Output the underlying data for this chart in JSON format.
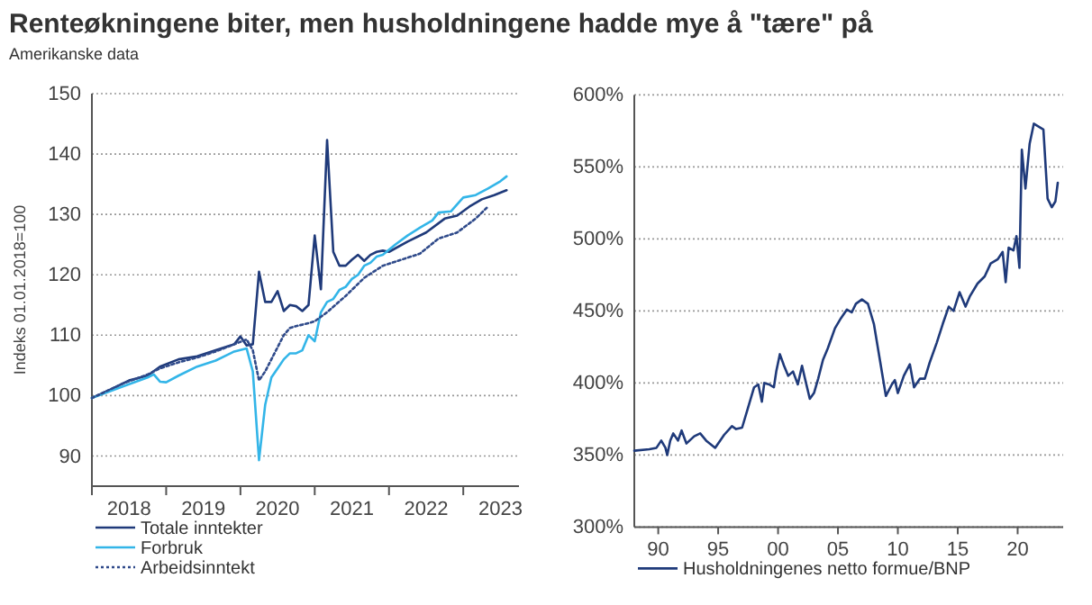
{
  "chart_data": [
    {
      "type": "line",
      "title": "Renteøkningene biter, men husholdningene hadde mye å \"tære\" på",
      "subtitle": "Amerikanske data",
      "ylabel": "Indeks 01.01.2018=100",
      "xlim": [
        "2018-01",
        "2023-10"
      ],
      "xticks": [
        {
          "value": "2018-01",
          "label": null
        },
        {
          "value": "2018-07",
          "label": "2018"
        },
        {
          "value": "2019-01",
          "label": null
        },
        {
          "value": "2019-07",
          "label": "2019"
        },
        {
          "value": "2020-01",
          "label": null
        },
        {
          "value": "2020-07",
          "label": "2020"
        },
        {
          "value": "2021-01",
          "label": null
        },
        {
          "value": "2021-07",
          "label": "2021"
        },
        {
          "value": "2022-01",
          "label": null
        },
        {
          "value": "2022-07",
          "label": "2022"
        },
        {
          "value": "2023-01",
          "label": null
        },
        {
          "value": "2023-07",
          "label": "2023"
        }
      ],
      "ylim": [
        85,
        150
      ],
      "yticks": [
        90,
        100,
        110,
        120,
        130,
        140,
        150
      ],
      "grid": "y",
      "legend": "bottom",
      "series": [
        {
          "name": "Totale inntekter",
          "color": "#1f3a7a",
          "line_style": "solid",
          "x": [
            "2018-01",
            "2018-04",
            "2018-07",
            "2018-10",
            "2018-12",
            "2019-03",
            "2019-06",
            "2019-09",
            "2019-12",
            "2020-01",
            "2020-02",
            "2020-03",
            "2020-04",
            "2020-05",
            "2020-06",
            "2020-07",
            "2020-08",
            "2020-09",
            "2020-10",
            "2020-11",
            "2020-12",
            "2021-01",
            "2021-02",
            "2021-03",
            "2021-04",
            "2021-05",
            "2021-06",
            "2021-07",
            "2021-08",
            "2021-09",
            "2021-10",
            "2021-11",
            "2021-12",
            "2022-01",
            "2022-04",
            "2022-07",
            "2022-10",
            "2022-12",
            "2023-02",
            "2023-04",
            "2023-06",
            "2023-08"
          ],
          "values": [
            99.6,
            101,
            102.5,
            103.3,
            104.8,
            106,
            106.5,
            107.5,
            108.5,
            109.8,
            108.3,
            108.5,
            120.5,
            115.5,
            115.5,
            117.3,
            114,
            115,
            114.8,
            114,
            115,
            126.5,
            117.6,
            142.3,
            123.8,
            121.5,
            121.5,
            122.5,
            123.3,
            122.3,
            123.3,
            123.8,
            124,
            123.8,
            125.5,
            127,
            129.3,
            129.8,
            131.3,
            132.5,
            133.2,
            134
          ]
        },
        {
          "name": "Forbruk",
          "color": "#33b5e8",
          "line_style": "solid",
          "x": [
            "2018-01",
            "2018-06",
            "2018-10",
            "2018-11",
            "2018-12",
            "2019-01",
            "2019-03",
            "2019-06",
            "2019-09",
            "2019-12",
            "2020-02",
            "2020-03",
            "2020-04",
            "2020-05",
            "2020-06",
            "2020-07",
            "2020-08",
            "2020-09",
            "2020-10",
            "2020-11",
            "2020-12",
            "2021-01",
            "2021-02",
            "2021-03",
            "2021-04",
            "2021-05",
            "2021-06",
            "2021-07",
            "2021-08",
            "2021-09",
            "2021-10",
            "2021-11",
            "2021-12",
            "2022-02",
            "2022-04",
            "2022-06",
            "2022-08",
            "2022-09",
            "2022-11",
            "2023-01",
            "2023-03",
            "2023-05",
            "2023-07",
            "2023-08"
          ],
          "values": [
            99.6,
            101.5,
            103,
            103.5,
            102.3,
            102.2,
            103.3,
            104.8,
            105.8,
            107.3,
            107.8,
            104,
            89.3,
            98.5,
            103,
            104.5,
            106,
            107,
            107,
            107.5,
            110,
            109,
            113.8,
            115.5,
            116,
            117.5,
            118,
            119.3,
            120,
            121.5,
            122,
            123,
            123.3,
            125,
            126.5,
            127.8,
            129,
            130.3,
            130.5,
            132.8,
            133.2,
            134.3,
            135.5,
            136.3
          ]
        },
        {
          "name": "Arbeidsinntekt",
          "color": "#2f4a8a",
          "line_style": "dotted",
          "x": [
            "2018-01",
            "2018-06",
            "2018-10",
            "2018-12",
            "2019-03",
            "2019-06",
            "2019-09",
            "2019-12",
            "2020-02",
            "2020-03",
            "2020-04",
            "2020-05",
            "2020-06",
            "2020-07",
            "2020-08",
            "2020-09",
            "2020-10",
            "2020-12",
            "2021-01",
            "2021-03",
            "2021-06",
            "2021-09",
            "2021-12",
            "2022-03",
            "2022-06",
            "2022-09",
            "2022-12",
            "2023-03",
            "2023-05"
          ],
          "values": [
            99.6,
            102,
            103.5,
            104.5,
            105.5,
            106.3,
            107.3,
            108.5,
            109.3,
            107.5,
            102.5,
            104,
            106,
            108,
            110,
            111.2,
            111.5,
            112,
            112.3,
            113.8,
            116.5,
            119.5,
            121.5,
            122.5,
            123.5,
            126,
            127,
            129.3,
            131.3
          ]
        }
      ]
    },
    {
      "type": "line",
      "xlim": [
        1988,
        2023.8
      ],
      "xticks": [
        {
          "value": 1990,
          "label": "90"
        },
        {
          "value": 1995,
          "label": "95"
        },
        {
          "value": 2000,
          "label": "00"
        },
        {
          "value": 2005,
          "label": "05"
        },
        {
          "value": 2010,
          "label": "10"
        },
        {
          "value": 2015,
          "label": "15"
        },
        {
          "value": 2020,
          "label": "20"
        }
      ],
      "ylim": [
        300,
        600
      ],
      "yticks": [
        {
          "value": 300,
          "label": "300%"
        },
        {
          "value": 350,
          "label": "350%"
        },
        {
          "value": 400,
          "label": "400%"
        },
        {
          "value": 450,
          "label": "450%"
        },
        {
          "value": 500,
          "label": "500%"
        },
        {
          "value": 550,
          "label": "550%"
        },
        {
          "value": 600,
          "label": "600%"
        }
      ],
      "grid": "y",
      "legend": "bottom",
      "series": [
        {
          "name": "Husholdningenes netto formue/BNP",
          "color": "#1f3a7a",
          "line_style": "solid",
          "x": [
            1988,
            1989.25,
            1989.85,
            1990.25,
            1990.6,
            1990.75,
            1991,
            1991.25,
            1991.65,
            1991.95,
            1992.35,
            1993,
            1993.5,
            1994,
            1994.75,
            1995.5,
            1996.15,
            1996.5,
            1997,
            1997.5,
            1998,
            1998.35,
            1998.65,
            1998.85,
            1999.25,
            1999.65,
            1999.85,
            2000.15,
            2000.5,
            2000.85,
            2001.25,
            2001.65,
            2002,
            2002.25,
            2002.65,
            2003,
            2003.35,
            2003.75,
            2004.15,
            2004.75,
            2005.25,
            2005.75,
            2006.15,
            2006.5,
            2007,
            2007.5,
            2008,
            2008.5,
            2009,
            2009.5,
            2009.75,
            2010,
            2010.5,
            2011,
            2011.35,
            2011.85,
            2012.25,
            2012.65,
            2013.25,
            2013.75,
            2014.25,
            2014.65,
            2015.15,
            2015.65,
            2016,
            2016.65,
            2017.25,
            2017.75,
            2018.35,
            2018.75,
            2019,
            2019.25,
            2019.65,
            2019.9,
            2020.15,
            2020.35,
            2020.65,
            2021,
            2021.35,
            2021.75,
            2022.15,
            2022.5,
            2022.85,
            2023.15,
            2023.35
          ],
          "values": [
            353,
            354,
            355,
            360,
            355,
            350,
            360,
            365,
            360,
            367,
            358,
            363,
            365,
            360,
            355,
            364,
            370,
            368,
            369,
            383,
            397,
            399,
            387,
            400,
            399,
            397,
            408,
            420,
            412,
            405,
            408,
            399,
            412,
            403,
            389,
            393,
            403,
            416,
            424,
            438,
            445,
            451,
            449,
            455,
            458,
            455,
            441,
            416,
            391,
            399,
            402,
            393,
            405,
            413,
            397,
            403,
            403,
            414,
            428,
            441,
            453,
            450,
            463,
            453,
            460,
            469,
            474,
            483,
            486,
            491,
            470,
            494,
            492,
            502,
            480,
            562,
            535,
            566,
            580,
            578,
            576,
            528,
            522,
            526,
            539
          ]
        }
      ]
    }
  ]
}
